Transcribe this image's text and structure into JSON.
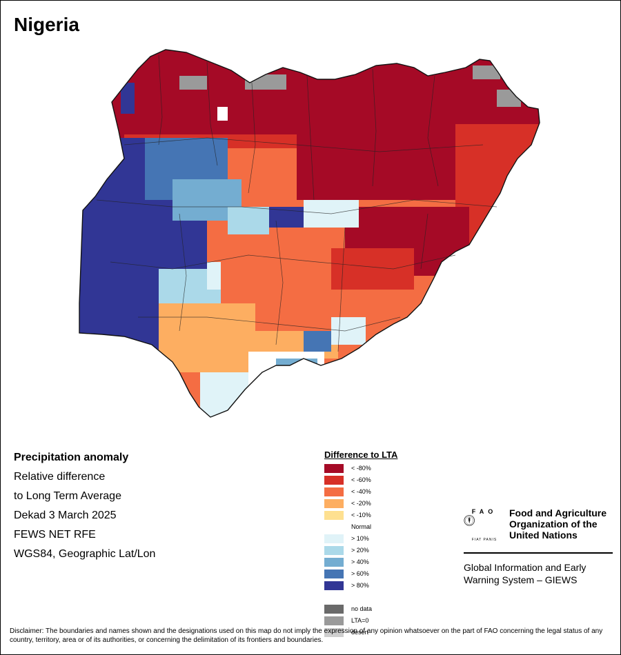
{
  "title": "Nigeria",
  "info": {
    "heading": "Precipitation anomaly",
    "lines": [
      "Relative difference",
      "to Long Term Average",
      "Dekad 3 March 2025",
      "FEWS NET RFE",
      "WGS84, Geographic Lat/Lon"
    ]
  },
  "legend": {
    "title": "Difference to LTA",
    "items": [
      {
        "label": "< -80%",
        "color": "#a50a26"
      },
      {
        "label": "< -60%",
        "color": "#d73027"
      },
      {
        "label": "< -40%",
        "color": "#f46d43"
      },
      {
        "label": "< -20%",
        "color": "#fdae61"
      },
      {
        "label": "< -10%",
        "color": "#fee090"
      },
      {
        "label": "Normal",
        "color": "#ffffff"
      },
      {
        "label": "> 10%",
        "color": "#e0f3f8"
      },
      {
        "label": "> 20%",
        "color": "#abd9e9"
      },
      {
        "label": "> 40%",
        "color": "#74add1"
      },
      {
        "label": "> 60%",
        "color": "#4575b4"
      },
      {
        "label": "> 80%",
        "color": "#313695"
      },
      {
        "label": "",
        "color": "#ffffff"
      },
      {
        "label": "no data",
        "color": "#6a6a6a"
      },
      {
        "label": "LTA=0",
        "color": "#9a9a9a"
      },
      {
        "label": "desert",
        "color": "#cfcfcf"
      }
    ]
  },
  "logo": {
    "org_name": "Food and Agriculture Organization of the United Nations",
    "system": "Global Information and Early Warning System – GIEWS",
    "emblem_text": "FAO",
    "emblem_motto": "FIAT PANIS"
  },
  "disclaimer": "Disclaimer: The boundaries and names shown and the designations used on this map do not imply the expression of any opinion whatsoever on the part of FAO concerning the legal status of any country, territory, area or of its authorities, or concerning the delimitation of its frontiers and boundaries."
}
